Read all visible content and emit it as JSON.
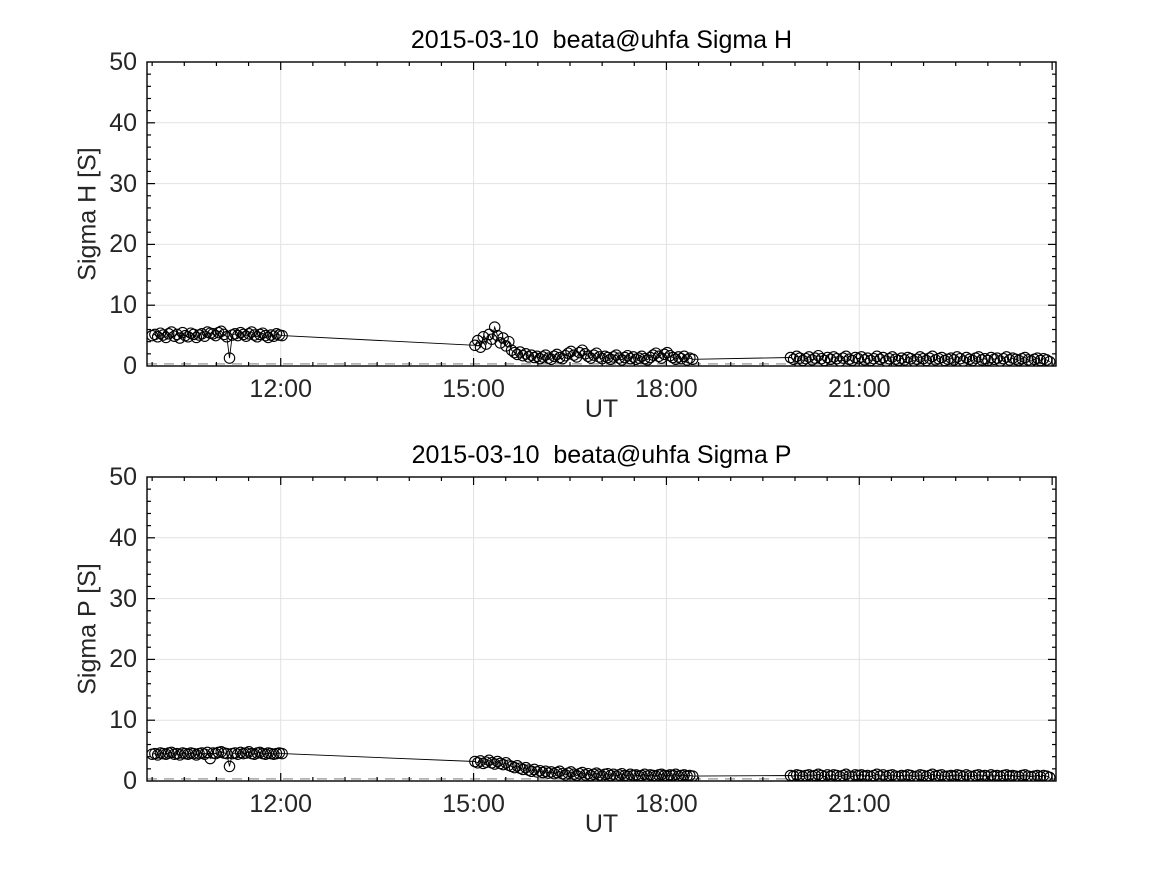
{
  "figure": {
    "background": "#ffffff"
  },
  "colors": {
    "axis": "#000000",
    "tick_label": "#262626",
    "grid": "#e2e2e2",
    "ref_dash": "#a6a6a6",
    "marker": "#000000",
    "line": "#000000"
  },
  "chart_data": [
    {
      "type": "scatter",
      "title": "2015-03-10  beata@uhfa Sigma H",
      "xlabel": "UT",
      "ylabel": "Sigma H [S]",
      "xlim": [
        9.92,
        24.06
      ],
      "ylim": [
        0,
        50
      ],
      "grid": true,
      "marker": "open-circle",
      "xticks": [
        {
          "v": 12,
          "label": "12:00"
        },
        {
          "v": 15,
          "label": "15:00"
        },
        {
          "v": 18,
          "label": "18:00"
        },
        {
          "v": 21,
          "label": "21:00"
        },
        {
          "v": 24,
          "label": ""
        }
      ],
      "minor_x_step": 0.5,
      "yticks": [
        0,
        10,
        20,
        30,
        40,
        50
      ],
      "minor_y_step": 2,
      "ref_dash_y": 0.35,
      "clusters": [
        {
          "t_start": 10.0,
          "t_step": 0.043,
          "y": [
            5.0,
            5.2,
            4.8,
            5.4,
            5.1,
            4.7,
            5.3,
            5.6,
            4.9,
            5.2,
            4.6,
            5.5,
            5.0,
            4.8,
            5.4,
            5.2,
            4.7,
            5.1,
            5.3,
            4.9,
            5.6,
            5.4,
            5.3,
            5.0,
            5.5,
            5.7,
            5.2,
            4.8,
            1.3,
            5.1,
            5.3,
            5.0,
            5.5,
            5.2,
            4.9,
            5.3,
            5.6,
            5.1,
            4.8,
            5.2,
            5.4,
            5.0,
            4.7,
            5.1,
            4.9,
            5.3,
            5.1,
            5.0
          ]
        },
        {
          "t_start": 15.02,
          "t_step": 0.044,
          "y": [
            3.4,
            4.2,
            3.1,
            4.8,
            3.6,
            5.2,
            4.4,
            6.4,
            5.0,
            3.8,
            4.6,
            3.3,
            4.0,
            2.6,
            2.2,
            1.9,
            2.3,
            1.7,
            2.0,
            1.5,
            1.8,
            1.4,
            1.6,
            1.2,
            1.5,
            1.8,
            1.3,
            1.1,
            1.6,
            1.9,
            1.4,
            1.2,
            1.7,
            2.1,
            2.4,
            1.8,
            1.5,
            2.2,
            2.6,
            2.0,
            1.6,
            1.3,
            1.8,
            2.1,
            1.5,
            1.2,
            1.6,
            1.4,
            1.1,
            1.5,
            1.8,
            1.3,
            1.0,
            1.4,
            1.7,
            1.2,
            1.5,
            1.1,
            1.3,
            1.6,
            1.2,
            1.0,
            1.4,
            1.8,
            2.1,
            1.6,
            1.3,
            1.9,
            2.2,
            1.7,
            1.4,
            1.1,
            1.5,
            1.2,
            1.6,
            1.0,
            1.3,
            1.1
          ]
        },
        {
          "t_start": 19.93,
          "t_step": 0.048,
          "y": [
            1.4,
            1.1,
            1.6,
            1.3,
            0.9,
            1.2,
            1.5,
            1.0,
            1.3,
            1.7,
            1.2,
            0.9,
            1.4,
            1.1,
            1.5,
            1.2,
            0.8,
            1.3,
            1.6,
            1.1,
            0.9,
            1.4,
            1.2,
            1.5,
            1.0,
            1.3,
            0.9,
            1.2,
            1.6,
            1.1,
            1.4,
            0.8,
            1.2,
            1.5,
            1.1,
            0.9,
            1.3,
            1.0,
            1.4,
            1.2,
            0.8,
            1.1,
            1.5,
            1.2,
            0.9,
            1.3,
            1.6,
            1.0,
            1.2,
            1.4,
            0.9,
            1.1,
            1.3,
            1.0,
            1.5,
            1.2,
            0.8,
            1.4,
            1.1,
            0.9,
            1.3,
            1.5,
            1.0,
            1.2,
            0.9,
            1.4,
            1.1,
            1.3,
            0.8,
            1.2,
            1.5,
            1.0,
            1.3,
            1.1,
            0.9,
            1.2,
            1.4,
            1.0,
            0.8,
            1.1,
            1.3,
            0.9,
            1.2,
            1.0,
            0.7
          ]
        }
      ]
    },
    {
      "type": "scatter",
      "title": "2015-03-10  beata@uhfa Sigma P",
      "xlabel": "UT",
      "ylabel": "Sigma P [S]",
      "xlim": [
        9.92,
        24.06
      ],
      "ylim": [
        0,
        50
      ],
      "grid": true,
      "marker": "open-circle",
      "xticks": [
        {
          "v": 12,
          "label": "12:00"
        },
        {
          "v": 15,
          "label": "15:00"
        },
        {
          "v": 18,
          "label": "18:00"
        },
        {
          "v": 21,
          "label": "21:00"
        },
        {
          "v": 24,
          "label": ""
        }
      ],
      "minor_x_step": 0.5,
      "yticks": [
        0,
        10,
        20,
        30,
        40,
        50
      ],
      "minor_y_step": 2,
      "ref_dash_y": 0.35,
      "clusters": [
        {
          "t_start": 10.0,
          "t_step": 0.043,
          "y": [
            4.4,
            4.5,
            4.3,
            4.6,
            4.5,
            4.4,
            4.6,
            4.7,
            4.4,
            4.5,
            4.3,
            4.6,
            4.5,
            4.4,
            4.6,
            4.5,
            4.3,
            4.5,
            4.6,
            4.4,
            4.7,
            3.7,
            4.6,
            4.5,
            4.7,
            4.8,
            4.6,
            4.5,
            2.4,
            4.5,
            4.6,
            4.4,
            4.7,
            4.5,
            4.6,
            4.8,
            4.5,
            4.4,
            4.6,
            4.7,
            4.5,
            4.4,
            4.6,
            4.5,
            4.4,
            4.5,
            4.6,
            4.5
          ]
        },
        {
          "t_start": 15.02,
          "t_step": 0.044,
          "y": [
            3.2,
            3.0,
            3.3,
            2.9,
            3.1,
            3.4,
            3.0,
            2.8,
            3.2,
            2.9,
            2.7,
            3.0,
            2.6,
            2.4,
            2.2,
            2.5,
            2.1,
            1.9,
            2.2,
            1.8,
            1.6,
            1.9,
            1.5,
            1.7,
            1.4,
            1.6,
            1.3,
            1.5,
            1.2,
            1.4,
            1.6,
            1.2,
            1.0,
            1.3,
            1.5,
            1.1,
            0.9,
            1.2,
            1.4,
            1.0,
            1.2,
            0.9,
            1.1,
            1.3,
            1.0,
            0.8,
            1.1,
            1.2,
            0.9,
            1.1,
            0.8,
            1.0,
            1.2,
            0.9,
            0.8,
            1.1,
            0.9,
            1.0,
            0.8,
            0.9,
            1.1,
            0.8,
            1.0,
            0.9,
            0.8,
            1.0,
            1.1,
            0.9,
            0.8,
            1.0,
            0.9,
            1.1,
            0.8,
            0.9,
            1.0,
            0.8,
            0.9,
            0.8
          ]
        },
        {
          "t_start": 19.93,
          "t_step": 0.048,
          "y": [
            0.9,
            0.8,
            1.0,
            0.9,
            0.7,
            0.9,
            1.0,
            0.8,
            0.9,
            1.1,
            0.9,
            0.7,
            1.0,
            0.8,
            1.0,
            0.9,
            0.7,
            0.9,
            1.1,
            0.8,
            0.7,
            1.0,
            0.9,
            1.0,
            0.8,
            0.9,
            0.7,
            0.9,
            1.1,
            0.8,
            1.0,
            0.7,
            0.9,
            1.0,
            0.8,
            0.7,
            0.9,
            0.8,
            1.0,
            0.9,
            0.7,
            0.8,
            1.0,
            0.9,
            0.7,
            0.9,
            1.1,
            0.8,
            0.9,
            1.0,
            0.7,
            0.8,
            0.9,
            0.8,
            1.0,
            0.9,
            0.7,
            1.0,
            0.8,
            0.7,
            0.9,
            1.0,
            0.8,
            0.9,
            0.7,
            1.0,
            0.8,
            0.9,
            0.7,
            0.9,
            1.0,
            0.8,
            0.9,
            0.8,
            0.7,
            0.9,
            1.0,
            0.8,
            0.7,
            0.8,
            0.9,
            0.7,
            0.9,
            0.8,
            0.6
          ]
        }
      ]
    }
  ]
}
